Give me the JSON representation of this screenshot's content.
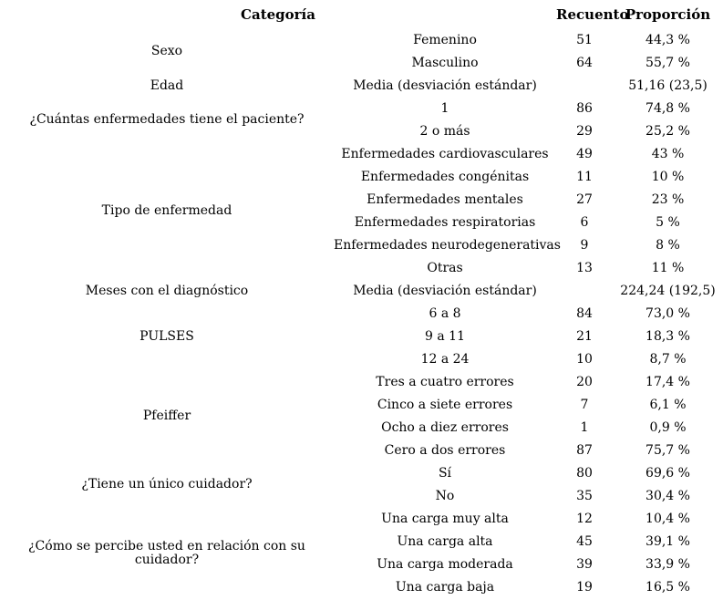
{
  "table": {
    "headers": {
      "category": "Categoría",
      "count": "Recuento",
      "proportion": "Proporción"
    },
    "groups": [
      {
        "category": "Sexo",
        "rows": [
          {
            "label": "Femenino",
            "count": "51",
            "proportion": "44,3 %"
          },
          {
            "label": "Masculino",
            "count": "64",
            "proportion": "55,7 %"
          }
        ]
      },
      {
        "category": "Edad",
        "rows": [
          {
            "label": "Media (desviación estándar)",
            "count": "",
            "proportion": "51,16 (23,5)"
          }
        ]
      },
      {
        "category": "¿Cuántas enfermedades tiene el paciente?",
        "rows": [
          {
            "label": "1",
            "count": "86",
            "proportion": "74,8 %"
          },
          {
            "label": "2 o más",
            "count": "29",
            "proportion": "25,2 %"
          }
        ]
      },
      {
        "category": "Tipo de enfermedad",
        "rows": [
          {
            "label": "Enfermedades cardiovasculares",
            "count": "49",
            "proportion": "43 %"
          },
          {
            "label": "Enfermedades congénitas",
            "count": "11",
            "proportion": "10 %"
          },
          {
            "label": "Enfermedades mentales",
            "count": "27",
            "proportion": "23 %"
          },
          {
            "label": "Enfermedades respiratorias",
            "count": "6",
            "proportion": "5 %"
          },
          {
            "label": "Enfermedades neurodegenerativas",
            "count": "9",
            "proportion": "8 %"
          },
          {
            "label": "Otras",
            "count": "13",
            "proportion": "11 %"
          }
        ]
      },
      {
        "category": "Meses con el diagnóstico",
        "rows": [
          {
            "label": "Media (desviación estándar)",
            "count": "",
            "proportion": "224,24 (192,5)"
          }
        ]
      },
      {
        "category": "PULSES",
        "rows": [
          {
            "label": "6 a 8",
            "count": "84",
            "proportion": "73,0 %"
          },
          {
            "label": "9 a 11",
            "count": "21",
            "proportion": "18,3 %"
          },
          {
            "label": "12 a 24",
            "count": "10",
            "proportion": "8,7 %"
          }
        ]
      },
      {
        "category": "Pfeiffer",
        "rows": [
          {
            "label": "Tres a cuatro errores",
            "count": "20",
            "proportion": "17,4 %"
          },
          {
            "label": "Cinco a siete errores",
            "count": "7",
            "proportion": "6,1 %"
          },
          {
            "label": "Ocho a diez errores",
            "count": "1",
            "proportion": "0,9 %"
          },
          {
            "label": "Cero a dos errores",
            "count": "87",
            "proportion": "75,7 %"
          }
        ]
      },
      {
        "category": "¿Tiene un único cuidador?",
        "rows": [
          {
            "label": "Sí",
            "count": "80",
            "proportion": "69,6 %"
          },
          {
            "label": "No",
            "count": "35",
            "proportion": "30,4 %"
          }
        ]
      },
      {
        "category": "¿Cómo se percibe usted en relación con su cuidador?",
        "rows": [
          {
            "label": "Una carga muy alta",
            "count": "12",
            "proportion": "10,4 %"
          },
          {
            "label": "Una carga alta",
            "count": "45",
            "proportion": "39,1 %"
          },
          {
            "label": "Una carga moderada",
            "count": "39",
            "proportion": "33,9 %"
          },
          {
            "label": "Una carga baja",
            "count": "19",
            "proportion": "16,5 %"
          }
        ]
      }
    ]
  }
}
